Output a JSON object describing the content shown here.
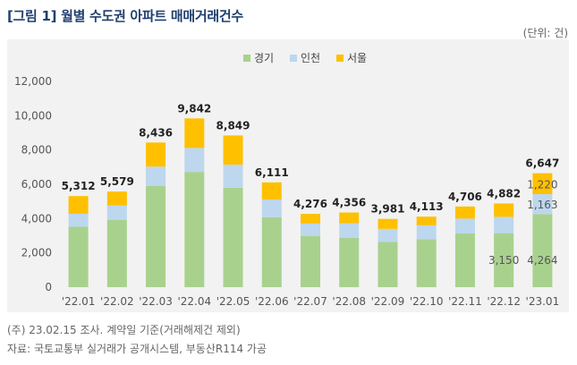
{
  "header": {
    "title": "[그림 1] 월별 수도권 아파트 매매거래건수",
    "unit": "(단위: 건)"
  },
  "notes": {
    "note1": "(주) 23.02.15 조사. 계약일 기준(거래해제건 제외)",
    "note2": "자료: 국토교통부 실거래가 공개시스템, 부동산R114 가공"
  },
  "colors": {
    "gyeonggi": "#a9d18e",
    "incheon": "#bdd7ee",
    "seoul": "#ffc000"
  },
  "chart_data": {
    "type": "bar",
    "stacked": true,
    "categories": [
      "'22.01",
      "'22.02",
      "'22.03",
      "'22.04",
      "'22.05",
      "'22.06",
      "'22.07",
      "'22.08",
      "'22.09",
      "'22.10",
      "'22.11",
      "'22.12",
      "'23.01"
    ],
    "series": [
      {
        "name": "경기",
        "values": [
          3520,
          3930,
          5900,
          6720,
          5800,
          4080,
          2990,
          2870,
          2640,
          2790,
          3130,
          3150,
          4264
        ]
      },
      {
        "name": "인천",
        "values": [
          760,
          830,
          1130,
          1400,
          1350,
          1030,
          720,
          860,
          760,
          820,
          870,
          950,
          1163
        ]
      },
      {
        "name": "서울",
        "values": [
          1032,
          819,
          1406,
          1722,
          1699,
          1001,
          566,
          626,
          581,
          503,
          706,
          782,
          1220
        ]
      }
    ],
    "totals": [
      "5,312",
      "5,579",
      "8,436",
      "9,842",
      "8,849",
      "6,111",
      "4,276",
      "4,356",
      "3,981",
      "4,113",
      "4,706",
      "4,882",
      "6,647"
    ],
    "inner_labels": [
      {
        "index": 11,
        "series": 0,
        "text": "3,150"
      },
      {
        "index": 12,
        "series": 0,
        "text": "4,264"
      },
      {
        "index": 12,
        "series": 1,
        "text": "1,163"
      },
      {
        "index": 12,
        "series": 2,
        "text": "1,220"
      }
    ],
    "ylim": [
      0,
      12000
    ],
    "yticks": [
      0,
      2000,
      4000,
      6000,
      8000,
      10000,
      12000
    ],
    "ytick_labels": [
      "0",
      "2,000",
      "4,000",
      "6,000",
      "8,000",
      "10,000",
      "12,000"
    ],
    "legend": "top-center",
    "grid": false
  }
}
